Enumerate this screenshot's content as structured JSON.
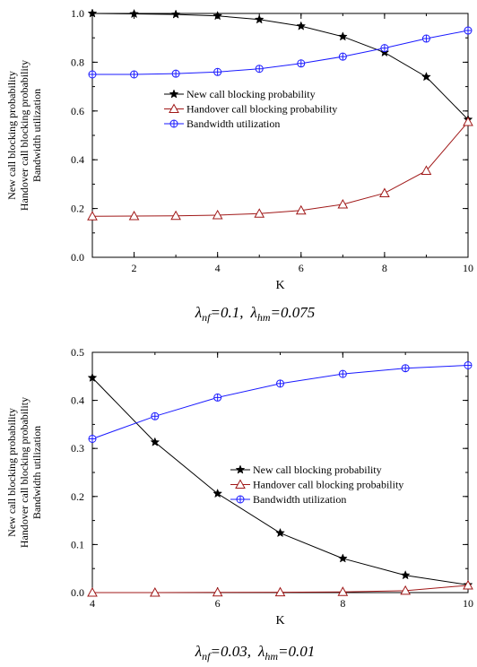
{
  "chart_data": [
    {
      "type": "line",
      "x": [
        1,
        2,
        3,
        4,
        5,
        6,
        7,
        8,
        9,
        10
      ],
      "xlim": [
        1,
        10
      ],
      "ylim": [
        0,
        1.0
      ],
      "xticks": [
        2,
        4,
        6,
        8,
        10
      ],
      "xtick_labels": [
        "2",
        "4",
        "6",
        "8",
        "10"
      ],
      "yticks": [
        0,
        0.2,
        0.4,
        0.6,
        0.8,
        1.0
      ],
      "ytick_labels": [
        "0.0",
        "0.2",
        "0.4",
        "0.6",
        "0.8",
        "1.0"
      ],
      "xlabel": "K",
      "ylabel_lines": [
        "New call blocking probability",
        "Handover call blocking probability",
        "Bandwidth utilization"
      ],
      "legend_position": "center",
      "grid": false,
      "caption": {
        "lambda1": "λ",
        "sub1": "nf",
        "val1": "=0.1,",
        "lambda2": "λ",
        "sub2": "hm",
        "val2": "=0.075"
      },
      "series": [
        {
          "name": "New call blocking probability",
          "color": "#000000",
          "marker": "star",
          "values": [
            1.0,
            0.998,
            0.996,
            0.99,
            0.975,
            0.948,
            0.905,
            0.84,
            0.74,
            0.565
          ]
        },
        {
          "name": "Handover call blocking probability",
          "color": "#a01818",
          "marker": "triangle",
          "values": [
            0.168,
            0.169,
            0.17,
            0.173,
            0.179,
            0.192,
            0.217,
            0.263,
            0.355,
            0.555
          ]
        },
        {
          "name": "Bandwidth utilization",
          "color": "#1a1aff",
          "marker": "circle-plus",
          "values": [
            0.75,
            0.75,
            0.753,
            0.76,
            0.773,
            0.795,
            0.823,
            0.858,
            0.897,
            0.93
          ]
        }
      ]
    },
    {
      "type": "line",
      "x": [
        4,
        5,
        6,
        7,
        8,
        9,
        10
      ],
      "xlim": [
        4,
        10
      ],
      "ylim": [
        0,
        0.5
      ],
      "xticks": [
        4,
        6,
        8,
        10
      ],
      "xtick_labels": [
        "4",
        "6",
        "8",
        "10"
      ],
      "yticks": [
        0,
        0.1,
        0.2,
        0.3,
        0.4,
        0.5
      ],
      "ytick_labels": [
        "0.0",
        "0.1",
        "0.2",
        "0.3",
        "0.4",
        "0.5"
      ],
      "xlabel": "K",
      "ylabel_lines": [
        "New call blocking probability",
        "Handover call blocking  probability",
        "Bandwidth utilization"
      ],
      "legend_position": "center-right",
      "grid": false,
      "caption": {
        "lambda1": "λ",
        "sub1": "nf",
        "val1": "=0.03,",
        "lambda2": "λ",
        "sub2": "hm",
        "val2": "=0.01"
      },
      "series": [
        {
          "name": "New call blocking probability",
          "color": "#000000",
          "marker": "star",
          "values": [
            0.447,
            0.313,
            0.206,
            0.124,
            0.071,
            0.036,
            0.016
          ]
        },
        {
          "name": "Handover call blocking probability",
          "color": "#a01818",
          "marker": "triangle",
          "values": [
            0.0,
            0.0,
            0.0005,
            0.0008,
            0.0015,
            0.004,
            0.015
          ]
        },
        {
          "name": "Bandwidth utilization",
          "color": "#1a1aff",
          "marker": "circle-plus",
          "values": [
            0.32,
            0.367,
            0.406,
            0.435,
            0.455,
            0.467,
            0.473
          ]
        }
      ]
    }
  ]
}
